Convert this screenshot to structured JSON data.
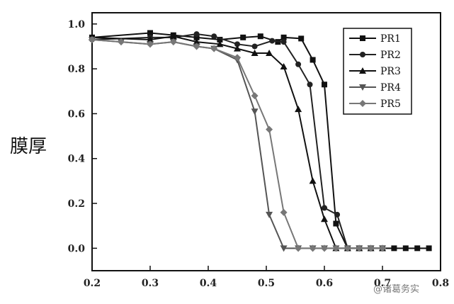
{
  "chart_data": {
    "type": "line",
    "title": "",
    "xlabel": "",
    "ylabel": "膜厚",
    "xlim": [
      0.2,
      0.8
    ],
    "ylim": [
      -0.1,
      1.05
    ],
    "x_ticks": [
      "0.2",
      "0.3",
      "0.4",
      "0.5",
      "0.6",
      "0.7",
      "0.8"
    ],
    "y_ticks": [
      "0.0",
      "0.2",
      "0.4",
      "0.6",
      "0.8",
      "1.0"
    ],
    "grid": false,
    "legend_position": "top-right",
    "series": [
      {
        "name": "PR1",
        "marker": "square",
        "color": "#111111",
        "x": [
          0.2,
          0.3,
          0.34,
          0.38,
          0.42,
          0.46,
          0.49,
          0.52,
          0.53,
          0.56,
          0.58,
          0.6,
          0.62,
          0.64,
          0.66,
          0.68,
          0.7,
          0.72,
          0.74,
          0.76,
          0.78
        ],
        "y": [
          0.94,
          0.96,
          0.95,
          0.94,
          0.93,
          0.94,
          0.945,
          0.92,
          0.94,
          0.935,
          0.84,
          0.73,
          0.11,
          0.0,
          0.0,
          0.0,
          0.0,
          0.0,
          0.0,
          0.0,
          0.0
        ]
      },
      {
        "name": "PR2",
        "marker": "circle",
        "color": "#222222",
        "x": [
          0.2,
          0.3,
          0.34,
          0.38,
          0.41,
          0.45,
          0.48,
          0.51,
          0.53,
          0.555,
          0.575,
          0.6,
          0.622,
          0.64,
          0.66,
          0.68,
          0.7
        ],
        "y": [
          0.93,
          0.94,
          0.94,
          0.955,
          0.945,
          0.91,
          0.9,
          0.925,
          0.92,
          0.82,
          0.73,
          0.18,
          0.15,
          0.0,
          0.0,
          0.0,
          0.0
        ]
      },
      {
        "name": "PR3",
        "marker": "triangle-up",
        "color": "#111111",
        "x": [
          0.2,
          0.3,
          0.34,
          0.38,
          0.42,
          0.45,
          0.48,
          0.505,
          0.53,
          0.555,
          0.58,
          0.6,
          0.62,
          0.64,
          0.66,
          0.68,
          0.7
        ],
        "y": [
          0.94,
          0.93,
          0.945,
          0.92,
          0.91,
          0.89,
          0.87,
          0.87,
          0.81,
          0.62,
          0.3,
          0.13,
          0.0,
          0.0,
          0.0,
          0.0,
          0.0
        ],
        "legend_fill": "#111111"
      },
      {
        "name": "PR4",
        "marker": "triangle-down",
        "color": "#555555",
        "x": [
          0.2,
          0.25,
          0.3,
          0.34,
          0.38,
          0.41,
          0.45,
          0.48,
          0.505,
          0.53,
          0.555,
          0.58,
          0.6,
          0.62,
          0.64,
          0.66,
          0.68,
          0.7
        ],
        "y": [
          0.93,
          0.92,
          0.91,
          0.92,
          0.9,
          0.89,
          0.84,
          0.61,
          0.15,
          0.0,
          0.0,
          0.0,
          0.0,
          0.0,
          0.0,
          0.0,
          0.0,
          0.0
        ]
      },
      {
        "name": "PR5",
        "marker": "diamond",
        "color": "#777777",
        "x": [
          0.2,
          0.25,
          0.3,
          0.34,
          0.38,
          0.41,
          0.45,
          0.48,
          0.505,
          0.53,
          0.555,
          0.58,
          0.6,
          0.62,
          0.64,
          0.66,
          0.68,
          0.7
        ],
        "y": [
          0.93,
          0.92,
          0.91,
          0.92,
          0.9,
          0.89,
          0.85,
          0.68,
          0.53,
          0.16,
          0.0,
          0.0,
          0.0,
          0.0,
          0.0,
          0.0,
          0.0,
          0.0
        ]
      }
    ]
  },
  "watermark": "@诸葛务实"
}
